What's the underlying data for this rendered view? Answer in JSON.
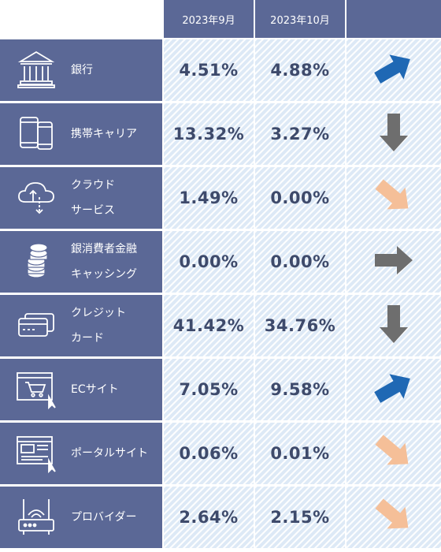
{
  "header": {
    "col1": "2023年9月",
    "col2": "2023年10月"
  },
  "colors": {
    "header_bg": "#5b6896",
    "cell_bg": "#dde9f6",
    "value_text": "#3e4a6b",
    "arrow_up": "#1f68b4",
    "arrow_flat": "#6e6e6e",
    "arrow_down_light": "#f5bf98"
  },
  "rows": [
    {
      "icon": "bank-icon",
      "label_line1": "銀行",
      "label_line2": "",
      "sep2023": "4.51%",
      "oct2023": "4.88%",
      "trend": "up-right"
    },
    {
      "icon": "mobile-phone-icon",
      "label_line1": "携帯キャリア",
      "label_line2": "",
      "sep2023": "13.32%",
      "oct2023": "3.27%",
      "trend": "down"
    },
    {
      "icon": "cloud-icon",
      "label_line1": "クラウド",
      "label_line2": "サービス",
      "sep2023": "1.49%",
      "oct2023": "0.00%",
      "trend": "down-right"
    },
    {
      "icon": "coins-icon",
      "label_line1": "銀消費者金融",
      "label_line2": "キャッシング",
      "sep2023": "0.00%",
      "oct2023": "0.00%",
      "trend": "right"
    },
    {
      "icon": "credit-card-icon",
      "label_line1": "クレジット",
      "label_line2": "カード",
      "sep2023": "41.42%",
      "oct2023": "34.76%",
      "trend": "down"
    },
    {
      "icon": "ec-cart-icon",
      "label_line1": "ECサイト",
      "label_line2": "",
      "sep2023": "7.05%",
      "oct2023": "9.58%",
      "trend": "up-right"
    },
    {
      "icon": "portal-site-icon",
      "label_line1": "ポータルサイト",
      "label_line2": "",
      "sep2023": "0.06%",
      "oct2023": "0.01%",
      "trend": "down-right"
    },
    {
      "icon": "router-icon",
      "label_line1": "プロバイダー",
      "label_line2": "",
      "sep2023": "2.64%",
      "oct2023": "2.15%",
      "trend": "down-right"
    }
  ]
}
